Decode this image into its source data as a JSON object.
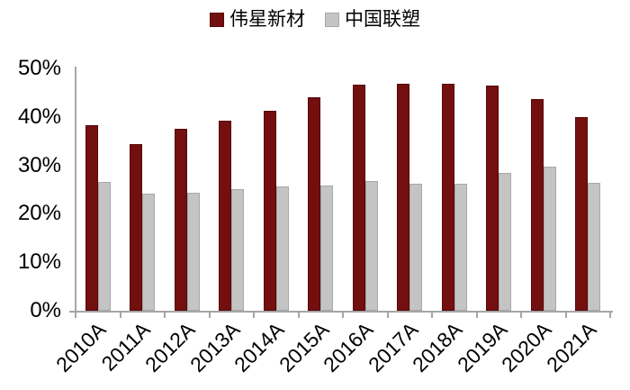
{
  "chart_data": {
    "type": "bar",
    "title": "",
    "xlabel": "",
    "ylabel": "",
    "unit": "%",
    "categories": [
      "2010A",
      "2011A",
      "2012A",
      "2013A",
      "2014A",
      "2015A",
      "2016A",
      "2017A",
      "2018A",
      "2019A",
      "2020A",
      "2021A"
    ],
    "series": [
      {
        "name": "伟星新材",
        "color": "#740f0f",
        "border_color": "#550808",
        "values": [
          38.3,
          34.4,
          37.6,
          39.2,
          41.2,
          44.0,
          46.6,
          46.8,
          46.8,
          46.4,
          43.6,
          39.9
        ]
      },
      {
        "name": "中国联塑",
        "color": "#c4c4c4",
        "border_color": "#a8a8a8",
        "values": [
          26.5,
          24.2,
          24.4,
          25.1,
          25.7,
          25.9,
          26.7,
          26.2,
          26.3,
          28.5,
          29.8,
          26.4
        ]
      }
    ],
    "ylim": [
      0,
      50
    ],
    "y_ticks": [
      "0%",
      "10%",
      "20%",
      "30%",
      "40%",
      "50%"
    ],
    "grid": false,
    "legend_position": "top-center",
    "axis_color": "#a6a6a6",
    "text_color": "#000000"
  }
}
